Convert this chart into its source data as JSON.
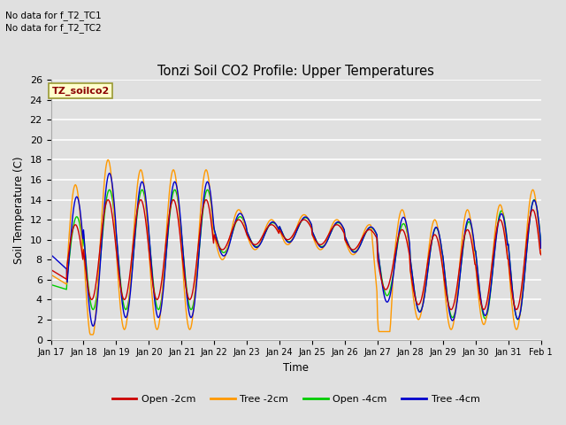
{
  "title": "Tonzi Soil CO2 Profile: Upper Temperatures",
  "ylabel": "Soil Temperature (C)",
  "xlabel": "Time",
  "annotation1": "No data for f_T2_TC1",
  "annotation2": "No data for f_T2_TC2",
  "dataset_label": "TZ_soilco2",
  "legend_entries": [
    "Open -2cm",
    "Tree -2cm",
    "Open -4cm",
    "Tree -4cm"
  ],
  "colors": [
    "#cc0000",
    "#ff9900",
    "#00cc00",
    "#0000cc"
  ],
  "ylim": [
    0,
    26
  ],
  "bg_color": "#e0e0e0",
  "grid_color": "#ffffff",
  "x_tick_labels": [
    "Jan 17",
    "Jan 18",
    "Jan 19",
    "Jan 20",
    "Jan 21",
    "Jan 22",
    "Jan 23",
    "Jan 24",
    "Jan 25",
    "Jan 26",
    "Jan 27",
    "Jan 28",
    "Jan 29",
    "Jan 30",
    "Jan 31",
    "Feb 1"
  ],
  "lw": 1.0
}
